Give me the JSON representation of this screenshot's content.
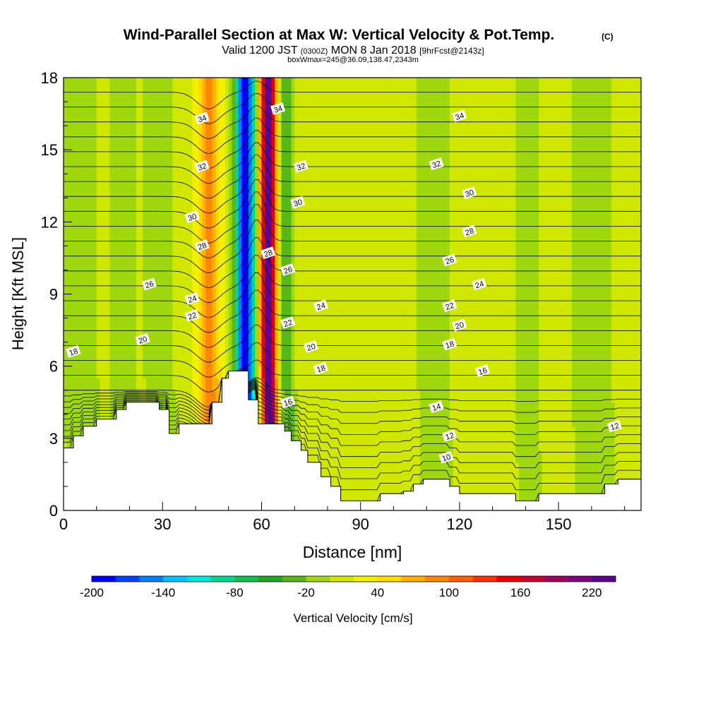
{
  "chart_data": {
    "type": "heatmap",
    "title": "Wind-Parallel Section at Max W: Vertical Velocity & Pot.Temp.",
    "title_suffix": "(C)",
    "subtitle": {
      "prefix": "Valid 1200 JST",
      "utc": "(0300Z)",
      "date": "MON 8 Jan 2018",
      "fcst": "[9hrFcst@2143z]"
    },
    "subtitle2": "boxWmax=245@36.09,138.47,2343m",
    "xlabel": "Distance [nm]",
    "ylabel": "Height [Kft MSL]",
    "xlim": [
      0,
      175
    ],
    "ylim": [
      0,
      18
    ],
    "x_ticks": [
      0,
      30,
      60,
      90,
      120,
      150
    ],
    "y_ticks": [
      0,
      3,
      6,
      9,
      12,
      15,
      18
    ],
    "colorbar": {
      "label": "Vertical Velocity [cm/s]",
      "min": -200,
      "max": 240,
      "step": 20,
      "tick_labels": [
        -200,
        -140,
        -80,
        -20,
        40,
        100,
        160,
        220
      ],
      "colors": [
        "#0000ff",
        "#0040ff",
        "#0080ff",
        "#00c0ff",
        "#00e8e0",
        "#00d890",
        "#10c050",
        "#20a820",
        "#58b818",
        "#a0d810",
        "#d0e800",
        "#f0f000",
        "#ffd800",
        "#ffb000",
        "#ff8800",
        "#ff6000",
        "#ff3000",
        "#e80000",
        "#c80030",
        "#a00060",
        "#800080",
        "#600090"
      ]
    },
    "background_w": 10,
    "w_features": [
      {
        "x": 55,
        "width": 2.8,
        "value": -210
      },
      {
        "x": 62,
        "width": 2.2,
        "value": 240
      },
      {
        "x": 67.5,
        "width": 2.2,
        "value": -50
      },
      {
        "x": 44,
        "width": 3.5,
        "value": 80
      },
      {
        "x": 29,
        "width": 4,
        "value": -30
      },
      {
        "x": 18,
        "width": 4,
        "value": -25
      },
      {
        "x": 5,
        "width": 5,
        "value": -30
      },
      {
        "x": 112,
        "width": 5,
        "value": -25
      },
      {
        "x": 160,
        "width": 8,
        "value": -18
      },
      {
        "x": 140,
        "width": 6,
        "value": -14
      }
    ],
    "terrain": [
      [
        0,
        2.6
      ],
      [
        3,
        2.6
      ],
      [
        3,
        3.1
      ],
      [
        6,
        3.1
      ],
      [
        6,
        3.5
      ],
      [
        10,
        3.5
      ],
      [
        10,
        3.8
      ],
      [
        16,
        3.8
      ],
      [
        16,
        4.2
      ],
      [
        19,
        4.2
      ],
      [
        19,
        4.5
      ],
      [
        29,
        4.5
      ],
      [
        29,
        4.2
      ],
      [
        32,
        4.2
      ],
      [
        32,
        3.2
      ],
      [
        35,
        3.2
      ],
      [
        35,
        3.6
      ],
      [
        45,
        3.6
      ],
      [
        45,
        4.5
      ],
      [
        48,
        4.5
      ],
      [
        48,
        5.5
      ],
      [
        50,
        5.5
      ],
      [
        50,
        5.8
      ],
      [
        56,
        5.8
      ],
      [
        56,
        4.6
      ],
      [
        59,
        4.6
      ],
      [
        59,
        3.6
      ],
      [
        67,
        3.6
      ],
      [
        67,
        3.3
      ],
      [
        69,
        3.3
      ],
      [
        69,
        2.9
      ],
      [
        72,
        2.9
      ],
      [
        72,
        2.5
      ],
      [
        74,
        2.5
      ],
      [
        74,
        2.0
      ],
      [
        78,
        2.0
      ],
      [
        78,
        1.4
      ],
      [
        81,
        1.4
      ],
      [
        81,
        1.0
      ],
      [
        84,
        1.0
      ],
      [
        84,
        0.4
      ],
      [
        96,
        0.4
      ],
      [
        96,
        0.7
      ],
      [
        103,
        0.7
      ],
      [
        103,
        0.8
      ],
      [
        106,
        0.8
      ],
      [
        106,
        1.1
      ],
      [
        109,
        1.1
      ],
      [
        109,
        1.3
      ],
      [
        117,
        1.3
      ],
      [
        117,
        1.0
      ],
      [
        120,
        1.0
      ],
      [
        120,
        0.7
      ],
      [
        137,
        0.7
      ],
      [
        137,
        0.4
      ],
      [
        144,
        0.4
      ],
      [
        144,
        0.7
      ],
      [
        164,
        0.7
      ],
      [
        164,
        1.1
      ],
      [
        168,
        1.1
      ],
      [
        168,
        1.3
      ],
      [
        175,
        1.3
      ]
    ],
    "theta_contours": [
      {
        "value": 10,
        "label_pos": [
          116,
          2.2
        ]
      },
      {
        "value": 12,
        "label_pos": [
          117,
          3.1
        ]
      },
      {
        "value": 12,
        "label_pos": [
          167,
          3.5
        ]
      },
      {
        "value": 14,
        "label_pos": [
          113,
          4.3
        ]
      },
      {
        "value": 16,
        "label_pos": [
          68,
          4.5
        ]
      },
      {
        "value": 16,
        "label_pos": [
          127,
          5.8
        ]
      },
      {
        "value": 18,
        "label_pos": [
          3,
          6.6
        ]
      },
      {
        "value": 18,
        "label_pos": [
          78,
          5.9
        ]
      },
      {
        "value": 18,
        "label_pos": [
          117,
          6.9
        ]
      },
      {
        "value": 20,
        "label_pos": [
          24,
          7.1
        ]
      },
      {
        "value": 20,
        "label_pos": [
          75,
          6.8
        ]
      },
      {
        "value": 20,
        "label_pos": [
          120,
          7.7
        ]
      },
      {
        "value": 22,
        "label_pos": [
          39,
          8.1
        ]
      },
      {
        "value": 22,
        "label_pos": [
          68,
          7.8
        ]
      },
      {
        "value": 22,
        "label_pos": [
          117,
          8.5
        ]
      },
      {
        "value": 24,
        "label_pos": [
          39,
          8.8
        ]
      },
      {
        "value": 24,
        "label_pos": [
          78,
          8.5
        ]
      },
      {
        "value": 24,
        "label_pos": [
          126,
          9.4
        ]
      },
      {
        "value": 26,
        "label_pos": [
          26,
          9.4
        ]
      },
      {
        "value": 26,
        "label_pos": [
          68,
          10.0
        ]
      },
      {
        "value": 26,
        "label_pos": [
          117,
          10.4
        ]
      },
      {
        "value": 28,
        "label_pos": [
          42,
          11.0
        ]
      },
      {
        "value": 28,
        "label_pos": [
          62,
          10.7
        ]
      },
      {
        "value": 28,
        "label_pos": [
          123,
          11.6
        ]
      },
      {
        "value": 30,
        "label_pos": [
          39,
          12.2
        ]
      },
      {
        "value": 30,
        "label_pos": [
          71,
          12.8
        ]
      },
      {
        "value": 30,
        "label_pos": [
          123,
          13.2
        ]
      },
      {
        "value": 32,
        "label_pos": [
          42,
          14.3
        ]
      },
      {
        "value": 32,
        "label_pos": [
          72,
          14.3
        ]
      },
      {
        "value": 32,
        "label_pos": [
          113,
          14.4
        ]
      },
      {
        "value": 34,
        "label_pos": [
          42,
          16.3
        ]
      },
      {
        "value": 34,
        "label_pos": [
          65,
          16.7
        ]
      },
      {
        "value": 34,
        "label_pos": [
          120,
          16.4
        ]
      }
    ]
  }
}
